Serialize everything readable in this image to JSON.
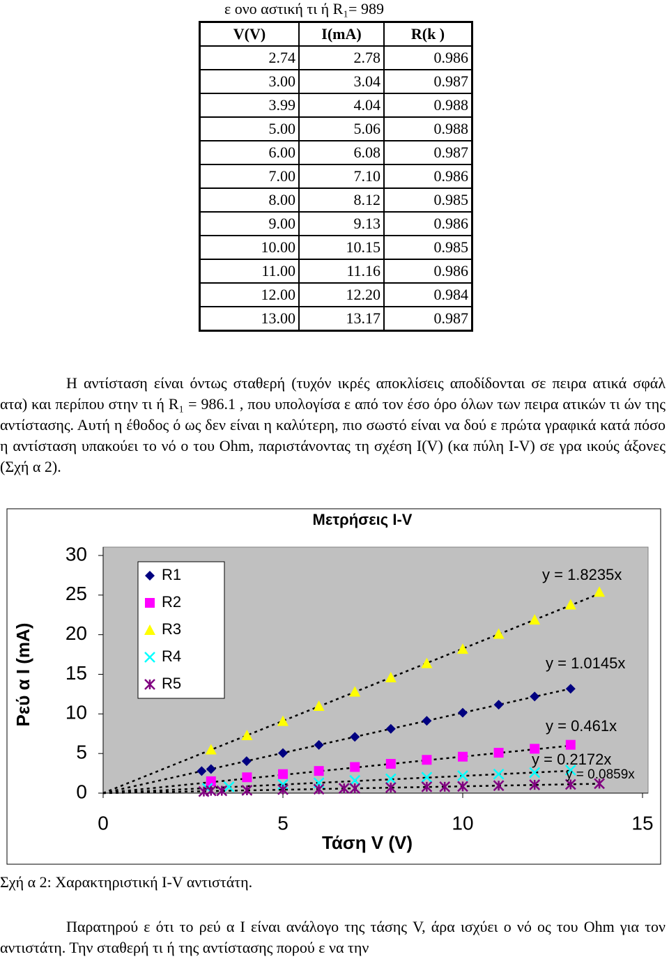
{
  "top_caption": "ε ονο αστική τι ή R₁= 989",
  "table": {
    "header": [
      "V(V)",
      "I(mA)",
      "R(k )"
    ],
    "rows": [
      [
        "2.74",
        "2.78",
        "0.986"
      ],
      [
        "3.00",
        "3.04",
        "0.987"
      ],
      [
        "3.99",
        "4.04",
        "0.988"
      ],
      [
        "5.00",
        "5.06",
        "0.988"
      ],
      [
        "6.00",
        "6.08",
        "0.987"
      ],
      [
        "7.00",
        "7.10",
        "0.986"
      ],
      [
        "8.00",
        "8.12",
        "0.985"
      ],
      [
        "9.00",
        "9.13",
        "0.986"
      ],
      [
        "10.00",
        "10.15",
        "0.985"
      ],
      [
        "11.00",
        "11.16",
        "0.986"
      ],
      [
        "12.00",
        "12.20",
        "0.984"
      ],
      [
        "13.00",
        "13.17",
        "0.987"
      ]
    ]
  },
  "paragraph_1": "Η αντίσταση είναι όντως σταθερή (τυχόν ικρές αποκλίσεις αποδίδονται σε πειρα ατικά σφάλ ατα) και περίπου στην τι ή R₁ = 986.1 , που υπολογίσα ε από τον έσο όρο όλων των πειρα ατικών τι ών της αντίστασης. Αυτή η έθοδος ό ως δεν είναι η καλύτερη, πιο σωστό είναι να δού ε πρώτα γραφικά κατά πόσο η αντίσταση υπακούει το νό ο του Ohm, παριστάνοντας τη σχέση I(V) (κα πύλη I-V) σε γρα ικούς άξονες (Σχή α 2).",
  "chart_data": {
    "type": "scatter",
    "title": "Μετρήσεις I-V",
    "x_label": "Τάση V (V)",
    "y_label": "Ρεύ α Ι (mA)",
    "xlim": [
      0,
      15
    ],
    "ylim": [
      0,
      30
    ],
    "xticks": [
      0,
      5,
      10,
      15
    ],
    "yticks": [
      0,
      5,
      10,
      15,
      20,
      25,
      30
    ],
    "grid": false,
    "legend": "upper-left",
    "series": [
      {
        "name": "R1",
        "color": "#000080",
        "marker": "diamond",
        "x": [
          2.74,
          3.0,
          3.99,
          5.0,
          6.0,
          7.0,
          8.0,
          9.0,
          10.0,
          11.0,
          12.0,
          13.0
        ],
        "values": [
          2.78,
          3.04,
          4.04,
          5.06,
          6.08,
          7.1,
          8.12,
          9.13,
          10.15,
          11.16,
          12.2,
          13.17
        ],
        "trendline": {
          "slope": 1.0145,
          "label": "y = 1.0145x"
        }
      },
      {
        "name": "R2",
        "color": "#ff00ff",
        "marker": "square",
        "x": [
          3.0,
          4.0,
          5.0,
          6.0,
          7.0,
          8.0,
          9.0,
          10.0,
          11.0,
          12.0,
          13.0
        ],
        "values": [
          1.5,
          2.0,
          2.4,
          2.8,
          3.3,
          3.7,
          4.2,
          4.6,
          5.1,
          5.6,
          6.1
        ],
        "trendline": {
          "slope": 0.461,
          "label": "y = 0.461x"
        }
      },
      {
        "name": "R3",
        "color": "#ffff00",
        "marker": "triangle",
        "x": [
          3.0,
          4.0,
          5.0,
          6.0,
          7.0,
          8.0,
          9.0,
          10.0,
          11.0,
          12.0,
          13.0,
          13.8
        ],
        "values": [
          5.5,
          7.3,
          9.1,
          11.0,
          12.8,
          14.6,
          16.4,
          18.2,
          20.1,
          21.9,
          23.8,
          25.4
        ],
        "trendline": {
          "slope": 1.8235,
          "label": "y = 1.8235x"
        }
      },
      {
        "name": "R4",
        "color": "#00ffff",
        "marker": "cross",
        "x": [
          2.9,
          3.5,
          5.0,
          6.0,
          7.0,
          8.0,
          9.0,
          10.0,
          11.0,
          12.0,
          13.0
        ],
        "values": [
          0.6,
          0.8,
          1.1,
          1.3,
          1.6,
          1.8,
          2.0,
          2.2,
          2.4,
          2.6,
          2.9
        ],
        "trendline": {
          "slope": 0.2172,
          "label": "y = 0.2172x"
        }
      },
      {
        "name": "R5",
        "color": "#800080",
        "marker": "star",
        "x": [
          2.8,
          3.0,
          3.3,
          4.0,
          5.0,
          6.0,
          6.7,
          7.0,
          8.0,
          9.0,
          9.5,
          10.0,
          11.0,
          12.0,
          13.0,
          13.8
        ],
        "values": [
          0.2,
          0.3,
          0.3,
          0.35,
          0.45,
          0.5,
          0.6,
          0.6,
          0.7,
          0.8,
          0.8,
          0.85,
          0.95,
          1.05,
          1.1,
          1.2
        ],
        "trendline": {
          "slope": 0.0859,
          "label": "y = 0.0859x"
        }
      }
    ]
  },
  "figure_caption": "Σχή α 2: Χαρακτηριστική I-V αντιστάτη.",
  "paragraph_2": "Παρατηρού ε ότι το ρεύ α I είναι ανάλογο της τάσης V, άρα ισχύει ο νό ος του Ohm για τον αντιστάτη. Την σταθερή τι ή της αντίστασης πορού ε να την"
}
